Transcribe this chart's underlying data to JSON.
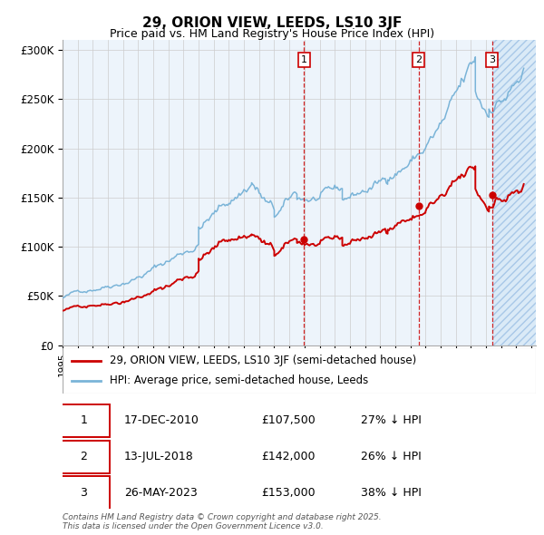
{
  "title_line1": "29, ORION VIEW, LEEDS, LS10 3JF",
  "title_line2": "Price paid vs. HM Land Registry's House Price Index (HPI)",
  "xlim_start": 1995.0,
  "xlim_end": 2026.0,
  "ylim_min": 0,
  "ylim_max": 310000,
  "yticks": [
    0,
    50000,
    100000,
    150000,
    200000,
    250000,
    300000
  ],
  "ytick_labels": [
    "£0",
    "£50K",
    "£100K",
    "£150K",
    "£200K",
    "£250K",
    "£300K"
  ],
  "legend_line1": "29, ORION VIEW, LEEDS, LS10 3JF (semi-detached house)",
  "legend_line2": "HPI: Average price, semi-detached house, Leeds",
  "sale1_date": 2010.96,
  "sale1_label": "1",
  "sale1_price": 107500,
  "sale2_date": 2018.54,
  "sale2_label": "2",
  "sale2_price": 142000,
  "sale3_date": 2023.4,
  "sale3_label": "3",
  "sale3_price": 153000,
  "table_data": [
    [
      "1",
      "17-DEC-2010",
      "£107,500",
      "27% ↓ HPI"
    ],
    [
      "2",
      "13-JUL-2018",
      "£142,000",
      "26% ↓ HPI"
    ],
    [
      "3",
      "26-MAY-2023",
      "£153,000",
      "38% ↓ HPI"
    ]
  ],
  "hpi_color": "#7ab4d8",
  "price_color": "#cc0000",
  "footnote": "Contains HM Land Registry data © Crown copyright and database right 2025.\nThis data is licensed under the Open Government Licence v3.0."
}
